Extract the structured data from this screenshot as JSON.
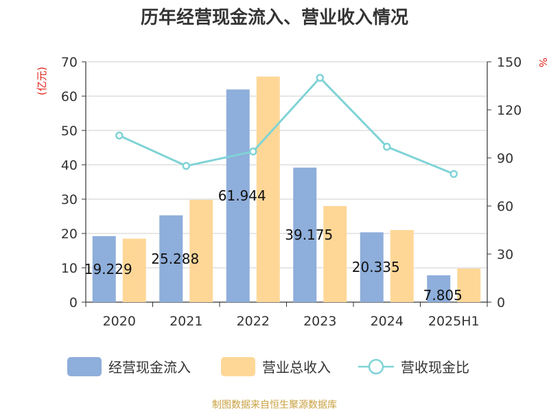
{
  "chart_data": {
    "type": "bar",
    "title": "历年经营现金流入、营业收入情况",
    "categories": [
      "2020",
      "2021",
      "2022",
      "2023",
      "2024",
      "2025H1"
    ],
    "y_left": {
      "label": "(亿元)",
      "ylim": [
        0,
        70
      ],
      "ticks": [
        "0",
        "10",
        "20",
        "30",
        "40",
        "50",
        "60",
        "70"
      ]
    },
    "y_right": {
      "label": "%",
      "ylim": [
        0,
        150
      ],
      "ticks": [
        "0",
        "30",
        "60",
        "90",
        "120",
        "150"
      ]
    },
    "series": [
      {
        "name": "经营现金流入",
        "type": "bar",
        "axis": "left",
        "color": "#8eaedb",
        "values": [
          19.229,
          25.288,
          61.944,
          39.175,
          20.335,
          7.805
        ],
        "labels": [
          "19.229",
          "25.288",
          "61.944",
          "39.175",
          "20.335",
          "7.805"
        ]
      },
      {
        "name": "营业总收入",
        "type": "bar",
        "axis": "left",
        "color": "#fed797",
        "values": [
          18.5,
          29.8,
          65.7,
          28.0,
          21.0,
          9.8
        ]
      },
      {
        "name": "营收现金比",
        "type": "line",
        "axis": "right",
        "color": "#7fd3d6",
        "values": [
          104,
          85,
          94,
          140,
          97,
          80
        ]
      }
    ],
    "grid": true,
    "legend_position": "bottom"
  },
  "source": "制图数据来自恒生聚源数据库"
}
